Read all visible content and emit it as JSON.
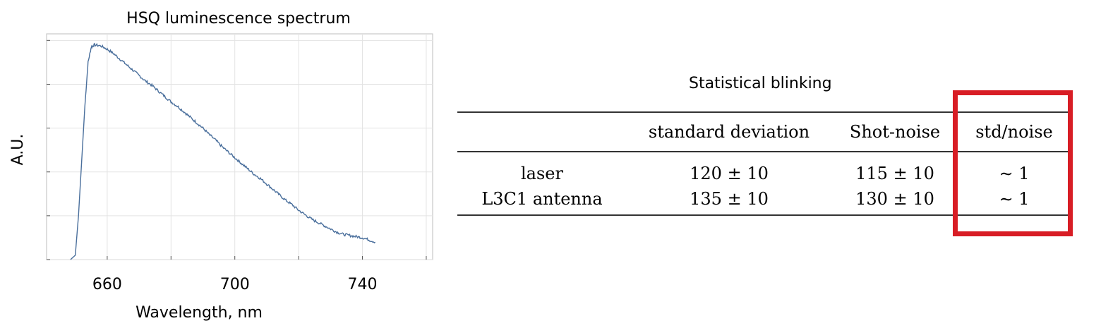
{
  "chart_data": {
    "type": "line",
    "title": "HSQ luminescence spectrum",
    "xlabel": "Wavelength, nm",
    "ylabel": "A.U.",
    "xlim": [
      641,
      762
    ],
    "ylim": [
      0,
      1.03
    ],
    "x_ticks": [
      660,
      700,
      740
    ],
    "grid": true,
    "series": [
      {
        "color": "#4a6f9c",
        "x": [
          648.5,
          650,
          651,
          652,
          653,
          654,
          655,
          656,
          658,
          660,
          662,
          664,
          666,
          668,
          670,
          672,
          674,
          676,
          678,
          680,
          682,
          684,
          686,
          688,
          690,
          692,
          694,
          696,
          698,
          700,
          702,
          704,
          706,
          708,
          710,
          712,
          714,
          716,
          718,
          720,
          722,
          724,
          726,
          728,
          730,
          732,
          734,
          736,
          738,
          740,
          742,
          744
        ],
        "y": [
          0.0,
          0.02,
          0.2,
          0.45,
          0.7,
          0.9,
          0.97,
          0.98,
          0.975,
          0.96,
          0.94,
          0.915,
          0.89,
          0.865,
          0.84,
          0.815,
          0.795,
          0.77,
          0.745,
          0.72,
          0.7,
          0.675,
          0.65,
          0.625,
          0.6,
          0.57,
          0.545,
          0.515,
          0.49,
          0.465,
          0.44,
          0.415,
          0.39,
          0.37,
          0.345,
          0.32,
          0.295,
          0.27,
          0.25,
          0.225,
          0.205,
          0.185,
          0.17,
          0.155,
          0.14,
          0.125,
          0.115,
          0.11,
          0.105,
          0.1,
          0.09,
          0.08
        ]
      }
    ]
  },
  "table": {
    "title": "Statistical blinking",
    "headers": [
      "",
      "standard deviation",
      "Shot-noise",
      "std/noise"
    ],
    "rows": [
      [
        "laser",
        "120 ± 10",
        "115 ± 10",
        "∼ 1"
      ],
      [
        "L3C1 antenna",
        "135 ± 10",
        "130 ± 10",
        "∼ 1"
      ]
    ],
    "highlight_color": "#d81d25"
  }
}
